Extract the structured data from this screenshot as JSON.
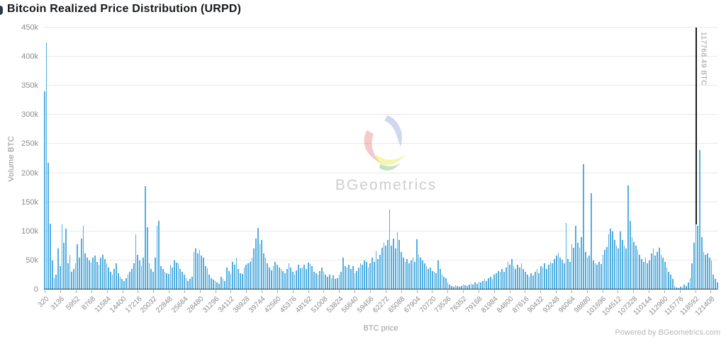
{
  "title": "Bitcoin Realized Price Distribution (URPD)",
  "watermark": {
    "text": "BGeometrics"
  },
  "footer": {
    "credit": "Powered by BGeometrics.com"
  },
  "price_line": {
    "label": "117768.49 BTC",
    "value": 117768.49
  },
  "chart_data": {
    "type": "bar",
    "title": "Bitcoin Realized Price Distribution (URPD)",
    "xlabel": "BTC price",
    "ylabel": "Volume BTC",
    "unit": "BTC",
    "ylim": [
      0,
      450000
    ],
    "grid": "horizontal",
    "legend": "none",
    "bar_color": "#52aee0",
    "y_ticks": [
      "0",
      "50k",
      "100k",
      "150k",
      "200k",
      "250k",
      "300k",
      "350k",
      "400k",
      "450k"
    ],
    "bin_start": 320,
    "bin_size": 352,
    "x_tick_every": 8,
    "x_tick_labels": [
      "320",
      "3136",
      "5952",
      "8768",
      "11584",
      "14400",
      "17216",
      "20032",
      "22848",
      "25664",
      "28480",
      "31296",
      "34112",
      "36928",
      "39744",
      "42560",
      "45376",
      "48192",
      "51008",
      "53824",
      "56640",
      "59456",
      "62272",
      "65088",
      "67904",
      "70720",
      "73536",
      "76352",
      "79168",
      "81984",
      "84800",
      "87616",
      "90432",
      "93248",
      "96064",
      "98880",
      "101696",
      "104512",
      "107328",
      "110144",
      "112960",
      "115776",
      "118592",
      "121408"
    ],
    "annotations": [
      {
        "type": "vline",
        "x": 117768.49,
        "label": "117768.49 BTC",
        "color": "#1c1c1c"
      }
    ],
    "values": [
      340000,
      425000,
      218000,
      113000,
      50000,
      20000,
      25000,
      70000,
      40000,
      112000,
      80000,
      105000,
      45000,
      60000,
      30000,
      35000,
      45000,
      78000,
      55000,
      88000,
      110000,
      62000,
      55000,
      50000,
      46000,
      55000,
      58000,
      48000,
      42000,
      55000,
      60000,
      52000,
      45000,
      38000,
      30000,
      26000,
      35000,
      45000,
      28000,
      22000,
      18000,
      15000,
      20000,
      25000,
      30000,
      35000,
      45000,
      95000,
      60000,
      50000,
      40000,
      55000,
      178000,
      107000,
      45000,
      35000,
      30000,
      55000,
      110000,
      118000,
      40000,
      35000,
      30000,
      28000,
      27000,
      43000,
      38000,
      50000,
      46000,
      45000,
      35000,
      30000,
      26000,
      20000,
      15000,
      18000,
      22000,
      65000,
      70000,
      62000,
      68000,
      58000,
      55000,
      40000,
      36000,
      25000,
      20000,
      17000,
      15000,
      12000,
      10000,
      22000,
      18000,
      15000,
      38000,
      32000,
      27000,
      48000,
      43000,
      55000,
      35000,
      28000,
      27000,
      38000,
      42000,
      45000,
      48000,
      55000,
      70000,
      88000,
      106000,
      78000,
      85000,
      62000,
      55000,
      45000,
      38000,
      33000,
      40000,
      47000,
      42000,
      38000,
      35000,
      32000,
      28000,
      35000,
      45000,
      38000,
      30000,
      26000,
      33000,
      42000,
      36000,
      38000,
      42000,
      35000,
      46000,
      44000,
      40000,
      30000,
      28000,
      25000,
      32000,
      38000,
      30000,
      26000,
      22000,
      25000,
      20000,
      24000,
      18000,
      20000,
      25000,
      30000,
      55000,
      40000,
      38000,
      42000,
      35000,
      40000,
      28000,
      32000,
      38000,
      45000,
      42000,
      50000,
      47000,
      38000,
      45000,
      55000,
      48000,
      66000,
      52000,
      60000,
      72000,
      80000,
      75000,
      85000,
      137000,
      75000,
      88000,
      70000,
      98000,
      85000,
      65000,
      55000,
      48000,
      52000,
      45000,
      50000,
      55000,
      48000,
      86000,
      60000,
      55000,
      50000,
      45000,
      40000,
      35000,
      38000,
      32000,
      30000,
      28000,
      50000,
      35000,
      25000,
      22000,
      20000,
      12000,
      8000,
      6000,
      5000,
      7000,
      6000,
      5000,
      6000,
      8000,
      7000,
      6000,
      9000,
      10000,
      9000,
      12000,
      10000,
      14000,
      12000,
      15000,
      18000,
      15000,
      20000,
      22000,
      18000,
      25000,
      28000,
      32000,
      30000,
      35000,
      30000,
      38000,
      47000,
      43000,
      52000,
      40000,
      35000,
      42000,
      38000,
      45000,
      35000,
      30000,
      25000,
      22000,
      28000,
      24000,
      30000,
      35000,
      28000,
      40000,
      38000,
      45000,
      35000,
      42000,
      48000,
      45000,
      52000,
      58000,
      63000,
      55000,
      51000,
      45000,
      114000,
      52000,
      47000,
      78000,
      72000,
      110000,
      80000,
      72000,
      90000,
      215000,
      65000,
      55000,
      58000,
      166000,
      50000,
      45000,
      42000,
      48000,
      44000,
      60000,
      68000,
      73000,
      95000,
      105000,
      100000,
      85000,
      75000,
      70000,
      100000,
      85000,
      75000,
      70000,
      179000,
      118000,
      90000,
      82000,
      75000,
      68000,
      60000,
      52000,
      48000,
      55000,
      45000,
      50000,
      62000,
      70000,
      58000,
      65000,
      72000,
      60000,
      55000,
      48000,
      38000,
      30000,
      25000,
      18000,
      6000,
      4000,
      3000,
      5000,
      4000,
      8000,
      6000,
      12000,
      20000,
      45000,
      80000,
      115000,
      110000,
      240000,
      90000,
      65000,
      60000,
      62000,
      55000,
      50000,
      25000,
      18000,
      12000
    ]
  }
}
